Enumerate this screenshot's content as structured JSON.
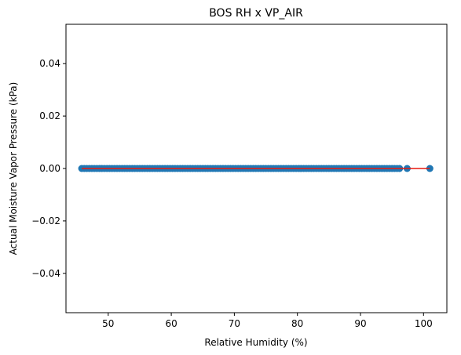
{
  "chart_data": {
    "type": "scatter",
    "title": "BOS RH x VP_AIR",
    "xlabel": "Relative Humidity (%)",
    "ylabel": "Actual Moisture Vapor Pressure (kPa)",
    "xlim": [
      43.3,
      103.7
    ],
    "ylim": [
      -0.055,
      0.055
    ],
    "xticks": [
      50,
      60,
      70,
      80,
      90,
      100
    ],
    "yticks": [
      -0.04,
      -0.02,
      0.0,
      0.02,
      0.04
    ],
    "ytick_labels": [
      "−0.04",
      "−0.02",
      "0.00",
      "0.02",
      "0.04"
    ],
    "scatter_color": "#1f77b4",
    "fit_line_color": "#e8190f",
    "grid": false,
    "series": [
      {
        "kind": "scatter",
        "x_range": [
          45.8,
          101.0
        ],
        "x_step": 0.4,
        "extra_x": [
          97.4,
          101.0
        ],
        "y": 0.0
      },
      {
        "kind": "line",
        "x": [
          45.8,
          101.0
        ],
        "y": [
          0.0,
          0.0
        ]
      }
    ]
  }
}
